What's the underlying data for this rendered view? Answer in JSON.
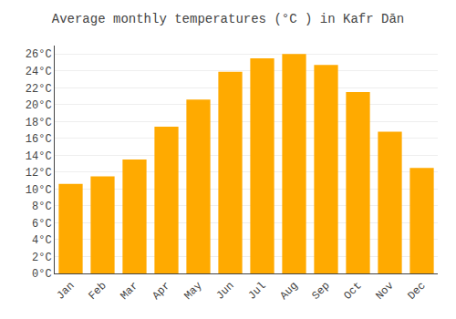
{
  "chart_data": {
    "type": "bar",
    "title": "Average monthly temperatures (°C ) in Kafr Dān",
    "categories": [
      "Jan",
      "Feb",
      "Mar",
      "Apr",
      "May",
      "Jun",
      "Jul",
      "Aug",
      "Sep",
      "Oct",
      "Nov",
      "Dec"
    ],
    "values": [
      10.6,
      11.5,
      13.5,
      17.4,
      20.6,
      23.9,
      25.5,
      26.0,
      24.7,
      21.5,
      16.8,
      12.5
    ],
    "color": "#FFAA00",
    "ylim": [
      0,
      27
    ],
    "yticks": [
      {
        "value": 0,
        "label": "0°C"
      },
      {
        "value": 2,
        "label": "2°C"
      },
      {
        "value": 4,
        "label": "4°C"
      },
      {
        "value": 6,
        "label": "6°C"
      },
      {
        "value": 8,
        "label": "8°C"
      },
      {
        "value": 10,
        "label": "10°C"
      },
      {
        "value": 12,
        "label": "12°C"
      },
      {
        "value": 14,
        "label": "14°C"
      },
      {
        "value": 16,
        "label": "16°C"
      },
      {
        "value": 18,
        "label": "18°C"
      },
      {
        "value": 20,
        "label": "20°C"
      },
      {
        "value": 22,
        "label": "22°C"
      },
      {
        "value": 24,
        "label": "24°C"
      },
      {
        "value": 26,
        "label": "26°C"
      }
    ],
    "grid": true
  }
}
